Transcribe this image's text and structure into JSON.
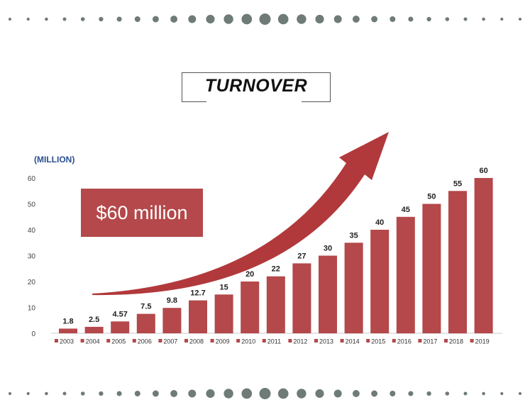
{
  "title": "TURNOVER",
  "callout": "$60 million",
  "colors": {
    "bar": "#b4484a",
    "dots": "#6e7b76",
    "unit": "#2a4f8f"
  },
  "chart_data": {
    "type": "bar",
    "ylabel": "(MILLION)",
    "categories": [
      "2003",
      "2004",
      "2005",
      "2006",
      "2007",
      "2008",
      "2009",
      "2010",
      "2011",
      "2012",
      "2013",
      "2014",
      "2015",
      "2016",
      "2017",
      "2018",
      "2019"
    ],
    "values": [
      1.8,
      2.5,
      4.57,
      7.5,
      9.8,
      12.7,
      15,
      20,
      22,
      27,
      30,
      35,
      40,
      45,
      50,
      55,
      60
    ],
    "value_labels": [
      "1.8",
      "2.5",
      "4.57",
      "7.5",
      "9.8",
      "12.7",
      "15",
      "20",
      "22",
      "27",
      "30",
      "35",
      "40",
      "45",
      "50",
      "55",
      "60"
    ],
    "ylim": [
      0,
      60
    ],
    "yticks": [
      0,
      10,
      20,
      30,
      40,
      50,
      60
    ],
    "grid": false,
    "legend": "bottom"
  }
}
